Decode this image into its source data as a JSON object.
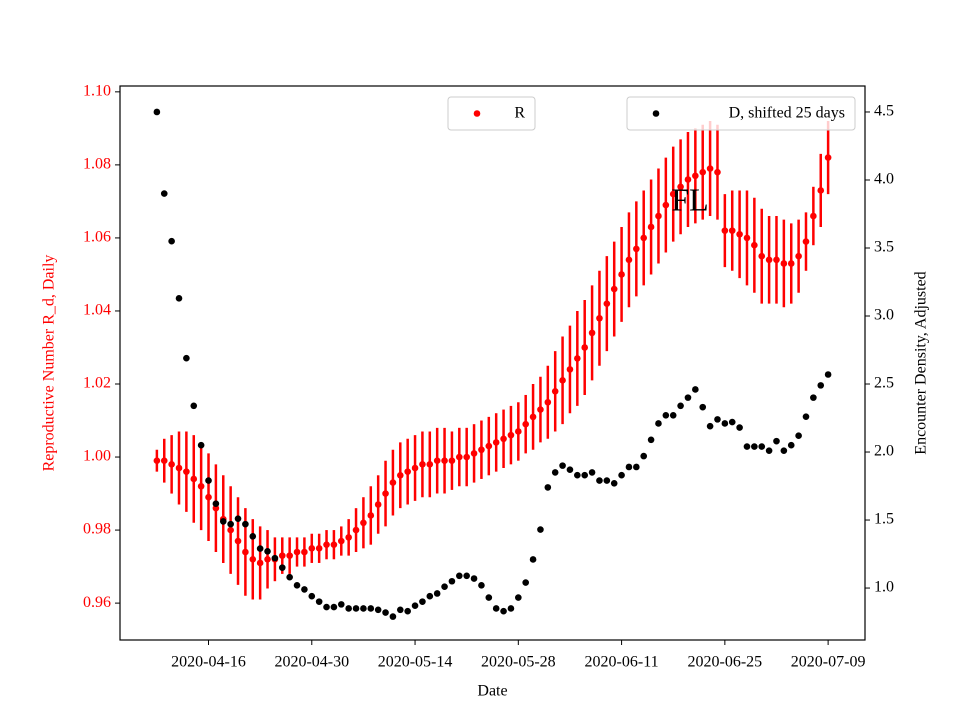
{
  "chart_data": {
    "type": "scatter",
    "annotation": "FL",
    "xlabel": "Date",
    "ylabel": "Reproductive Number R_d, Daily",
    "y2label": "Encounter Density, Adjusted",
    "x": [
      "2020-04-09",
      "2020-04-10",
      "2020-04-11",
      "2020-04-12",
      "2020-04-13",
      "2020-04-14",
      "2020-04-15",
      "2020-04-16",
      "2020-04-17",
      "2020-04-18",
      "2020-04-19",
      "2020-04-20",
      "2020-04-21",
      "2020-04-22",
      "2020-04-23",
      "2020-04-24",
      "2020-04-25",
      "2020-04-26",
      "2020-04-27",
      "2020-04-28",
      "2020-04-29",
      "2020-04-30",
      "2020-05-01",
      "2020-05-02",
      "2020-05-03",
      "2020-05-04",
      "2020-05-05",
      "2020-05-06",
      "2020-05-07",
      "2020-05-08",
      "2020-05-09",
      "2020-05-10",
      "2020-05-11",
      "2020-05-12",
      "2020-05-13",
      "2020-05-14",
      "2020-05-15",
      "2020-05-16",
      "2020-05-17",
      "2020-05-18",
      "2020-05-19",
      "2020-05-20",
      "2020-05-21",
      "2020-05-22",
      "2020-05-23",
      "2020-05-24",
      "2020-05-25",
      "2020-05-26",
      "2020-05-27",
      "2020-05-28",
      "2020-05-29",
      "2020-05-30",
      "2020-05-31",
      "2020-06-01",
      "2020-06-02",
      "2020-06-03",
      "2020-06-04",
      "2020-06-05",
      "2020-06-06",
      "2020-06-07",
      "2020-06-08",
      "2020-06-09",
      "2020-06-10",
      "2020-06-11",
      "2020-06-12",
      "2020-06-13",
      "2020-06-14",
      "2020-06-15",
      "2020-06-16",
      "2020-06-17",
      "2020-06-18",
      "2020-06-19",
      "2020-06-20",
      "2020-06-21",
      "2020-06-22",
      "2020-06-23",
      "2020-06-24",
      "2020-06-25",
      "2020-06-26",
      "2020-06-27",
      "2020-06-28",
      "2020-06-29",
      "2020-06-30",
      "2020-07-01",
      "2020-07-02",
      "2020-07-03",
      "2020-07-04",
      "2020-07-05",
      "2020-07-06",
      "2020-07-07",
      "2020-07-08",
      "2020-07-09"
    ],
    "series": [
      {
        "name": "R",
        "color": "#ff0000",
        "values": [
          0.999,
          0.999,
          0.998,
          0.997,
          0.996,
          0.994,
          0.992,
          0.989,
          0.986,
          0.983,
          0.98,
          0.977,
          0.974,
          0.972,
          0.971,
          0.972,
          0.972,
          0.973,
          0.973,
          0.974,
          0.974,
          0.975,
          0.975,
          0.976,
          0.976,
          0.977,
          0.978,
          0.98,
          0.982,
          0.984,
          0.987,
          0.99,
          0.993,
          0.995,
          0.996,
          0.997,
          0.998,
          0.998,
          0.999,
          0.999,
          0.999,
          1.0,
          1.0,
          1.001,
          1.002,
          1.003,
          1.004,
          1.005,
          1.006,
          1.007,
          1.009,
          1.011,
          1.013,
          1.015,
          1.018,
          1.021,
          1.024,
          1.027,
          1.03,
          1.034,
          1.038,
          1.042,
          1.046,
          1.05,
          1.054,
          1.057,
          1.06,
          1.063,
          1.066,
          1.069,
          1.072,
          1.074,
          1.076,
          1.077,
          1.078,
          1.079,
          1.078,
          1.062,
          1.062,
          1.061,
          1.06,
          1.058,
          1.055,
          1.054,
          1.054,
          1.053,
          1.053,
          1.055,
          1.059,
          1.066,
          1.073,
          1.082
        ],
        "errors": [
          0.003,
          0.006,
          0.008,
          0.01,
          0.011,
          0.012,
          0.012,
          0.012,
          0.012,
          0.012,
          0.012,
          0.012,
          0.012,
          0.011,
          0.01,
          0.008,
          0.006,
          0.005,
          0.005,
          0.004,
          0.004,
          0.004,
          0.004,
          0.004,
          0.004,
          0.004,
          0.005,
          0.006,
          0.007,
          0.008,
          0.008,
          0.009,
          0.009,
          0.009,
          0.009,
          0.009,
          0.009,
          0.009,
          0.009,
          0.009,
          0.008,
          0.008,
          0.008,
          0.008,
          0.008,
          0.008,
          0.008,
          0.008,
          0.008,
          0.008,
          0.008,
          0.009,
          0.009,
          0.01,
          0.011,
          0.012,
          0.012,
          0.013,
          0.013,
          0.013,
          0.013,
          0.013,
          0.013,
          0.013,
          0.013,
          0.013,
          0.013,
          0.013,
          0.013,
          0.013,
          0.013,
          0.013,
          0.013,
          0.013,
          0.013,
          0.013,
          0.013,
          0.01,
          0.011,
          0.012,
          0.013,
          0.013,
          0.013,
          0.012,
          0.012,
          0.012,
          0.011,
          0.01,
          0.008,
          0.008,
          0.01,
          0.01
        ]
      },
      {
        "name": "D, shifted 25 days",
        "color": "#000000",
        "axis": "y2",
        "values": [
          4.5,
          3.9,
          3.55,
          3.13,
          2.69,
          2.34,
          2.05,
          1.79,
          1.62,
          1.49,
          1.47,
          1.51,
          1.47,
          1.38,
          1.29,
          1.27,
          1.22,
          1.15,
          1.08,
          1.02,
          0.99,
          0.94,
          0.9,
          0.86,
          0.86,
          0.88,
          0.85,
          0.85,
          0.85,
          0.85,
          0.84,
          0.82,
          0.79,
          0.84,
          0.83,
          0.87,
          0.9,
          0.94,
          0.96,
          1.01,
          1.05,
          1.09,
          1.09,
          1.07,
          1.02,
          0.93,
          0.85,
          0.83,
          0.85,
          0.93,
          1.04,
          1.21,
          1.43,
          1.74,
          1.85,
          1.9,
          1.87,
          1.83,
          1.83,
          1.85,
          1.79,
          1.79,
          1.77,
          1.83,
          1.89,
          1.89,
          1.97,
          2.09,
          2.21,
          2.27,
          2.27,
          2.34,
          2.4,
          2.46,
          2.33,
          2.19,
          2.24,
          2.21,
          2.22,
          2.18,
          2.04,
          2.04,
          2.04,
          2.01,
          2.08,
          2.01,
          2.05,
          2.12,
          2.26,
          2.4,
          2.49,
          2.57
        ]
      }
    ],
    "xlim": [
      "2020-04-04",
      "2020-07-14"
    ],
    "xticks": [
      "2020-04-16",
      "2020-04-30",
      "2020-05-14",
      "2020-05-28",
      "2020-06-11",
      "2020-06-25",
      "2020-07-09"
    ],
    "ylim": [
      0.9499,
      1.1016
    ],
    "yticks": [
      0.96,
      0.98,
      {
        "value": 1.0,
        "label": "1.00"
      },
      1.02,
      1.04,
      1.06,
      1.08,
      {
        "value": 1.1,
        "label": "1.10"
      }
    ],
    "y2lim": [
      0.618,
      4.691
    ],
    "y2ticks": [
      {
        "value": 1.0,
        "label": "1.0"
      },
      1.5,
      {
        "value": 2.0,
        "label": "2.0"
      },
      2.5,
      {
        "value": 3.0,
        "label": "3.0"
      },
      3.5,
      {
        "value": 4.0,
        "label": "4.0"
      },
      4.5
    ]
  }
}
